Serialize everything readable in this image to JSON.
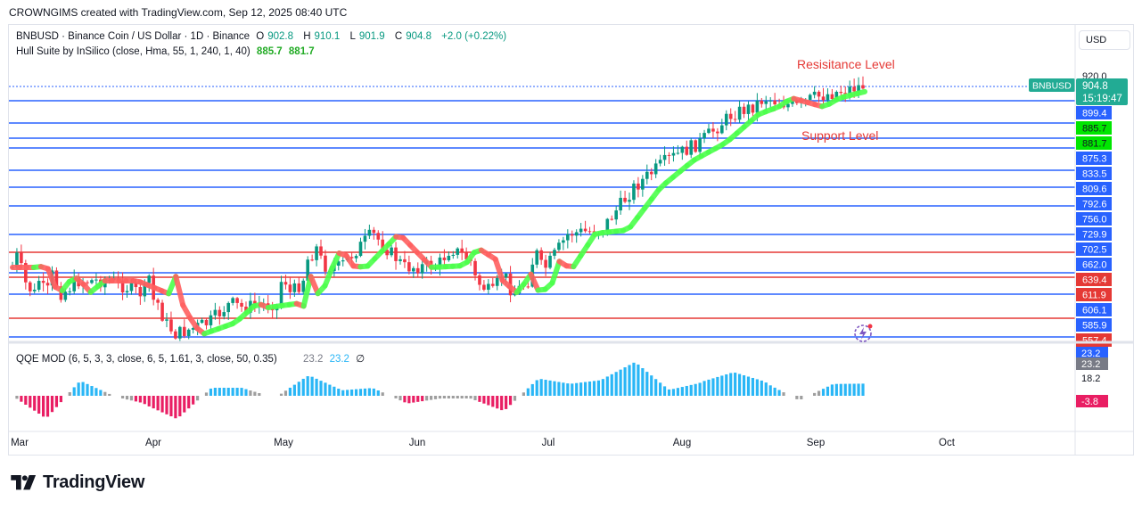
{
  "credit": "CROWNGIMS created with TradingView.com, Sep 12, 2025 08:40 UTC",
  "currency_button": "USD",
  "brand": "TradingView",
  "legend": {
    "symbol_line": "BNBUSD · Binance Coin / US Dollar · 1D · Binance",
    "o_label": "O",
    "o_value": "902.8",
    "h_label": "H",
    "h_value": "910.1",
    "l_label": "L",
    "l_value": "901.9",
    "c_label": "C",
    "c_value": "904.8",
    "change": "+2.0 (+0.22%)",
    "indicator_name": "Hull Suite by InSilico (close, Hma, 55, 1, 240, 1, 40)",
    "hull_value_1": "885.7",
    "hull_value_2": "881.7"
  },
  "qqe_legend": {
    "name": "QQE MOD (6, 5, 3, 3, close, 6, 5, 1.61, 3, close, 50, 0.35)",
    "value_1": "23.2",
    "value_2": "23.2",
    "value_3": "∅"
  },
  "annotations": {
    "resistance": "Resisitance Level",
    "support": "Support Level"
  },
  "colors": {
    "up": "#089981",
    "down": "#f23645",
    "level_blue": "#2962ff",
    "level_red": "#e53935",
    "hull_up": "#4cff4c",
    "hull_down": "#ff6060",
    "qqe_blue": "#29b6f6",
    "qqe_pink": "#e91e63",
    "qqe_gray": "#9e9e9e"
  },
  "chart_data": {
    "type": "candlestick",
    "symbol": "BNBUSD",
    "x_labels": [
      "Mar",
      "Apr",
      "May",
      "Jun",
      "Jul",
      "Aug",
      "Sep",
      "Oct"
    ],
    "y_axis_top_label": "920.0",
    "price_tag": {
      "symbol": "BNBUSD",
      "price": "904.8",
      "countdown": "15:19:47"
    },
    "levels": [
      {
        "price": 899.4,
        "label": "899.4",
        "color": "blue"
      },
      {
        "price": 885.7,
        "label": "885.7",
        "color": "green"
      },
      {
        "price": 881.7,
        "label": "881.7",
        "color": "green"
      },
      {
        "price": 875.3,
        "label": "875.3",
        "color": "blue"
      },
      {
        "price": 833.5,
        "label": "833.5",
        "color": "blue"
      },
      {
        "price": 809.6,
        "label": "809.6",
        "color": "blue"
      },
      {
        "price": 792.6,
        "label": "792.6",
        "color": "blue"
      },
      {
        "price": 756.0,
        "label": "756.0",
        "color": "blue"
      },
      {
        "price": 729.9,
        "label": "729.9",
        "color": "blue"
      },
      {
        "price": 702.5,
        "label": "702.5",
        "color": "blue"
      },
      {
        "price": 662.0,
        "label": "662.0",
        "color": "blue"
      },
      {
        "price": 639.4,
        "label": "639.4",
        "color": "red"
      },
      {
        "price": 611.9,
        "label": "611.9",
        "color": "red"
      },
      {
        "price": 606.1,
        "label": "606.1",
        "color": "blue"
      },
      {
        "price": 585.9,
        "label": "585.9",
        "color": "blue"
      },
      {
        "price": 557.4,
        "label": "557.4",
        "color": "red"
      }
    ],
    "horizontal_lines": [
      904.8,
      892.0,
      871.0,
      861.0,
      850.5,
      834.5,
      812.0,
      789.0,
      752.0,
      729.5,
      704.0,
      676.0,
      665.0,
      632.0
    ],
    "red_lines": [
      729.5,
      676.0
    ],
    "close_path": [
      [
        "Mar",
        655
      ],
      [
        "Mar 8",
        610
      ],
      [
        "Mar 15",
        640
      ],
      [
        "Mar 22",
        640
      ],
      [
        "Apr",
        625
      ],
      [
        "Apr 8",
        580
      ],
      [
        "Apr 15",
        595
      ],
      [
        "Apr 22",
        610
      ],
      [
        "May",
        605
      ],
      [
        "May 8",
        645
      ],
      [
        "May 15",
        655
      ],
      [
        "May 22",
        670
      ],
      [
        "Jun",
        655
      ],
      [
        "Jun 8",
        650
      ],
      [
        "Jun 15",
        645
      ],
      [
        "Jun 22",
        615
      ],
      [
        "Jul",
        648
      ],
      [
        "Jul 8",
        670
      ],
      [
        "Jul 15",
        700
      ],
      [
        "Jul 22",
        765
      ],
      [
        "Aug",
        775
      ],
      [
        "Aug 8",
        800
      ],
      [
        "Aug 15",
        845
      ],
      [
        "Aug 22",
        870
      ],
      [
        "Sep",
        860
      ],
      [
        "Sep 8",
        882
      ],
      [
        "Sep 12",
        904.8
      ]
    ],
    "qqe": {
      "labels": [
        "23.2",
        "23.2",
        "18.2",
        "-3.8"
      ]
    }
  }
}
